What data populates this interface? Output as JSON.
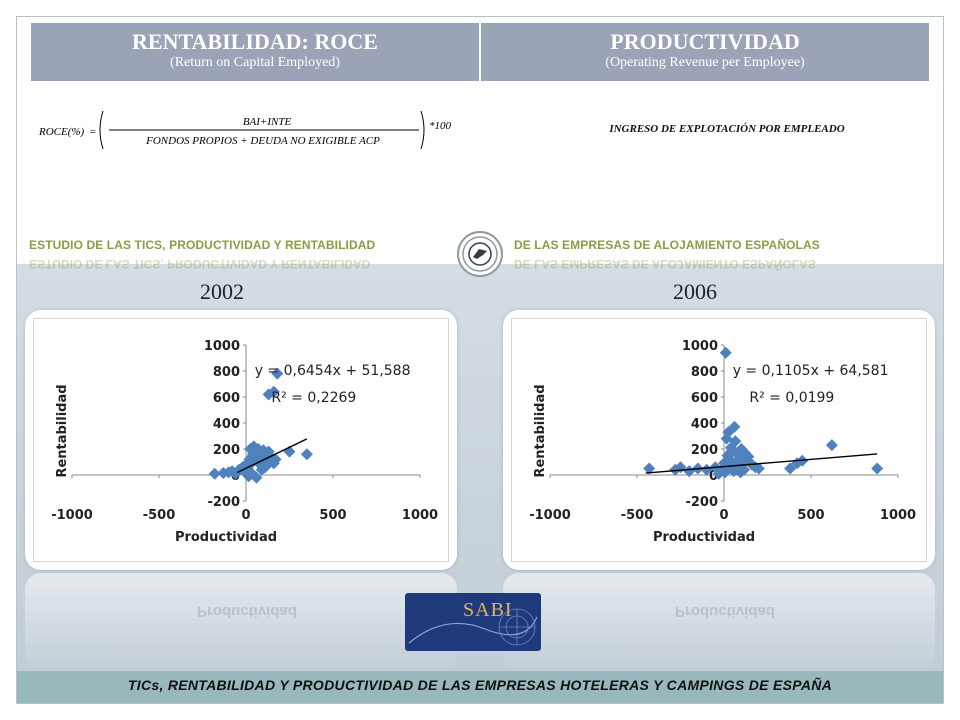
{
  "header": {
    "left_title": "RENTABILIDAD: ROCE",
    "left_subtitle": "(Return on Capital Employed)",
    "right_title": "PRODUCTIVIDAD",
    "right_subtitle": "(Operating Revenue per Employee)"
  },
  "formula": {
    "lhs": "ROCE(%)",
    "numerator": "BAI+INTE",
    "denominator": "FONDOS PROPIOS + DEUDA NO EXIGIBLE ACP",
    "multiplier": "*100"
  },
  "productivity_definition": "INGRESO DE EXPLOTACIÓN POR EMPLEADO",
  "banner": {
    "left": "ESTUDIO DE LAS TICS, PRODUCTIVIDAD Y RENTABILIDAD",
    "right": "DE LAS EMPRESAS  DE ALOJAMIENTO ESPAÑOLAS"
  },
  "logo_text": "SABI",
  "footer": "TICs, RENTABILIDAD Y PRODUCTIVIDAD DE LAS EMPRESAS HOTELERAS Y CAMPINGS DE ESPAÑA",
  "colors": {
    "header_bg": "#9ba3b6",
    "banner_text": "#8a9c44",
    "point": "#4f81bd",
    "footer_bg": "#99b8bc"
  },
  "chart_data": [
    {
      "type": "scatter",
      "title": "2002",
      "xlabel": "Productividad",
      "ylabel": "Rentabilidad",
      "xlim": [
        -1000,
        1000
      ],
      "ylim": [
        -200,
        1000
      ],
      "xticks": [
        "-1000",
        "-500",
        "0",
        "500",
        "1000"
      ],
      "yticks": [
        "-200",
        "0",
        "200",
        "400",
        "600",
        "800",
        "1000"
      ],
      "equation": "y = 0,6454x + 51,588",
      "r_squared": "R² = 0,2269",
      "trendline": {
        "slope": 0.6454,
        "intercept": 51.588,
        "x_range": [
          -50,
          350
        ]
      },
      "points": [
        [
          -180,
          10
        ],
        [
          -130,
          15
        ],
        [
          -100,
          20
        ],
        [
          -80,
          30
        ],
        [
          -60,
          10
        ],
        [
          -40,
          40
        ],
        [
          -20,
          60
        ],
        [
          -10,
          30
        ],
        [
          0,
          80
        ],
        [
          10,
          50
        ],
        [
          20,
          120
        ],
        [
          25,
          200
        ],
        [
          30,
          90
        ],
        [
          40,
          160
        ],
        [
          45,
          220
        ],
        [
          50,
          140
        ],
        [
          55,
          180
        ],
        [
          60,
          110
        ],
        [
          70,
          200
        ],
        [
          75,
          90
        ],
        [
          80,
          170
        ],
        [
          90,
          130
        ],
        [
          100,
          190
        ],
        [
          110,
          150
        ],
        [
          120,
          120
        ],
        [
          130,
          180
        ],
        [
          140,
          100
        ],
        [
          150,
          130
        ],
        [
          160,
          90
        ],
        [
          170,
          120
        ],
        [
          250,
          180
        ],
        [
          350,
          160
        ],
        [
          130,
          620
        ],
        [
          160,
          640
        ],
        [
          180,
          780
        ],
        [
          60,
          -20
        ],
        [
          90,
          40
        ],
        [
          110,
          60
        ],
        [
          15,
          -10
        ],
        [
          35,
          10
        ]
      ]
    },
    {
      "type": "scatter",
      "title": "2006",
      "xlabel": "Productividad",
      "ylabel": "Rentabilidad",
      "xlim": [
        -1000,
        1000
      ],
      "ylim": [
        -200,
        1000
      ],
      "xticks": [
        "-1000",
        "-500",
        "0",
        "500",
        "1000"
      ],
      "yticks": [
        "-200",
        "0",
        "200",
        "400",
        "600",
        "800",
        "1000"
      ],
      "equation": "y = 0,1105x + 64,581",
      "r_squared": "R² = 0,0199",
      "trendline": {
        "slope": 0.1105,
        "intercept": 64.581,
        "x_range": [
          -450,
          880
        ]
      },
      "points": [
        [
          -430,
          50
        ],
        [
          -280,
          40
        ],
        [
          -250,
          60
        ],
        [
          -200,
          30
        ],
        [
          -150,
          50
        ],
        [
          -100,
          40
        ],
        [
          -50,
          60
        ],
        [
          -20,
          30
        ],
        [
          0,
          90
        ],
        [
          10,
          940
        ],
        [
          15,
          280
        ],
        [
          20,
          150
        ],
        [
          25,
          330
        ],
        [
          30,
          120
        ],
        [
          40,
          210
        ],
        [
          50,
          180
        ],
        [
          60,
          370
        ],
        [
          65,
          260
        ],
        [
          70,
          100
        ],
        [
          80,
          160
        ],
        [
          90,
          130
        ],
        [
          100,
          200
        ],
        [
          110,
          90
        ],
        [
          120,
          170
        ],
        [
          140,
          140
        ],
        [
          160,
          80
        ],
        [
          180,
          60
        ],
        [
          200,
          50
        ],
        [
          380,
          50
        ],
        [
          420,
          90
        ],
        [
          450,
          110
        ],
        [
          620,
          230
        ],
        [
          880,
          50
        ],
        [
          -30,
          10
        ],
        [
          5,
          20
        ],
        [
          35,
          60
        ],
        [
          55,
          30
        ],
        [
          75,
          50
        ],
        [
          95,
          20
        ],
        [
          115,
          40
        ]
      ]
    }
  ]
}
